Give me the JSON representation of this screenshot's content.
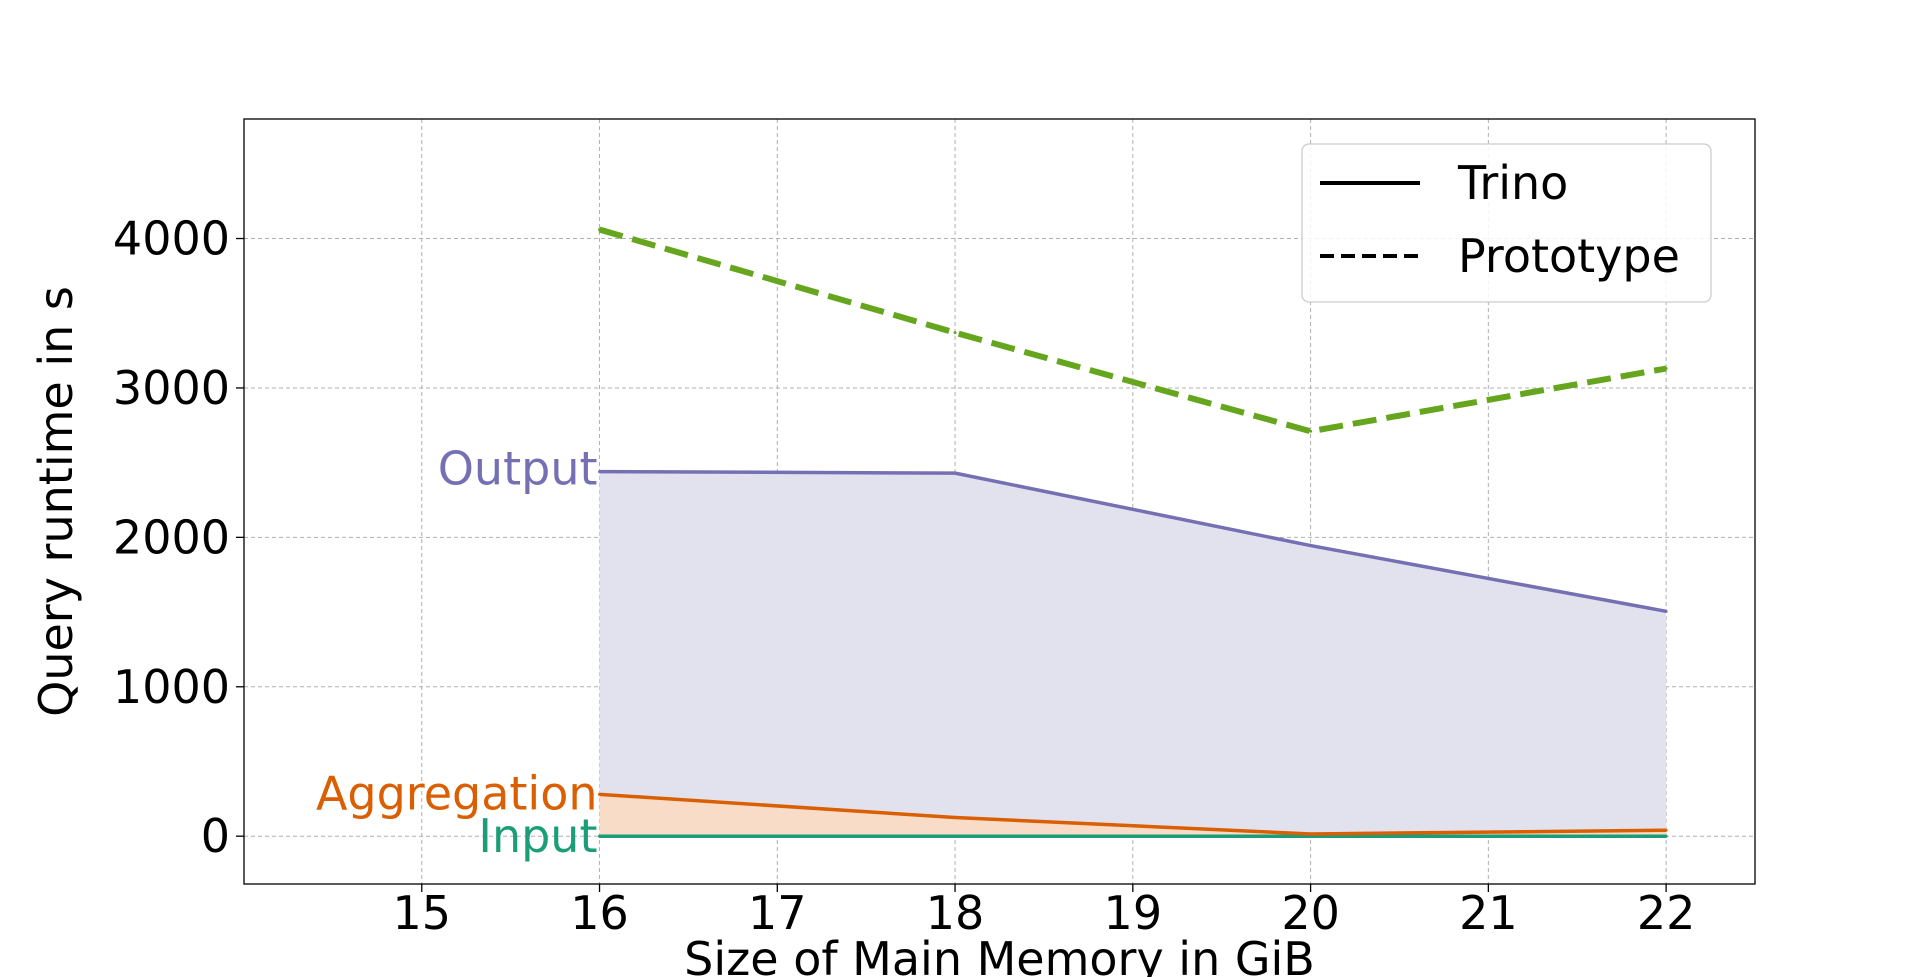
{
  "chart_data": {
    "type": "area",
    "title": "",
    "xlabel": "Size of Main Memory in GiB",
    "ylabel": "Query runtime in s",
    "xlim": [
      14.0,
      22.5
    ],
    "ylim": [
      -320,
      4800
    ],
    "xticks": [
      15,
      16,
      17,
      18,
      19,
      20,
      21,
      22
    ],
    "yticks": [
      0,
      1000,
      2000,
      3000,
      4000
    ],
    "x": [
      16,
      18,
      20,
      22
    ],
    "grid": true,
    "legend_position": "top-right",
    "legend": [
      {
        "label": "Trino",
        "style": "solid"
      },
      {
        "label": "Prototype",
        "style": "dashed"
      }
    ],
    "series": [
      {
        "name": "Input",
        "system": "Trino",
        "style": "solid",
        "color": "#1b9e77",
        "values": [
          0,
          0,
          0,
          0
        ]
      },
      {
        "name": "Aggregation",
        "system": "Trino",
        "style": "solid",
        "color": "#d95f02",
        "fill": "#f9dcc8",
        "values": [
          280,
          125,
          15,
          40
        ]
      },
      {
        "name": "Output",
        "system": "Trino",
        "style": "solid",
        "color": "#7570b3",
        "fill": "#e2e2ef",
        "values": [
          2440,
          2430,
          1945,
          1505
        ]
      },
      {
        "system": "Prototype",
        "style": "dashed",
        "color": "#66a61e",
        "values": [
          4060,
          3370,
          2710,
          3130
        ]
      }
    ]
  }
}
